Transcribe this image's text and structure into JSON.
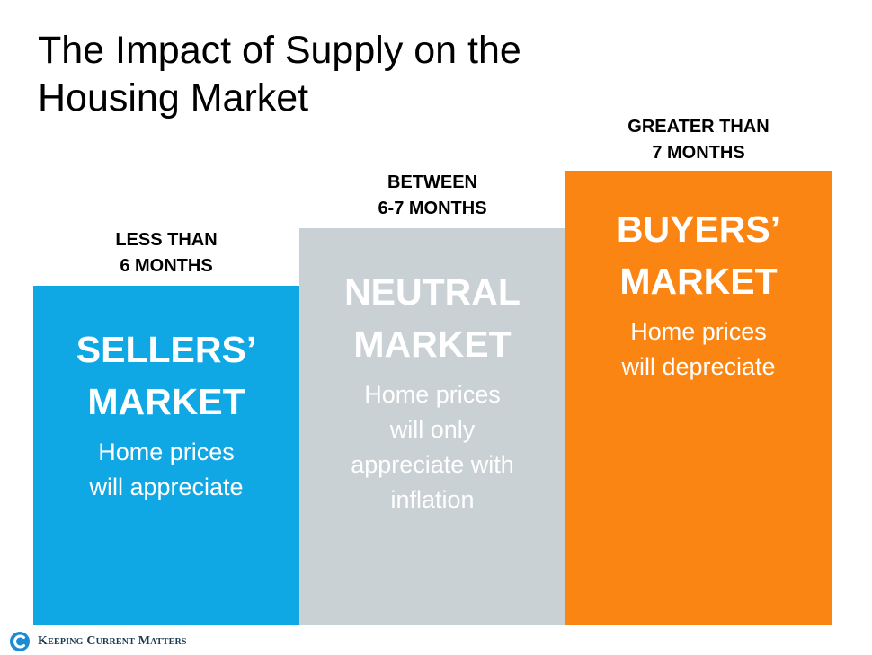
{
  "title": {
    "line1": "The Impact of Supply on the",
    "line2": "Housing Market"
  },
  "markets": [
    {
      "range_line1": "LESS THAN",
      "range_line2": "6 MONTHS",
      "name_line1": "SELLERS’",
      "name_line2": "MARKET",
      "desc_line1": "Home prices",
      "desc_line2": "will appreciate",
      "color": "#10a8e4"
    },
    {
      "range_line1": "BETWEEN",
      "range_line2": "6-7 MONTHS",
      "name_line1": "NEUTRAL",
      "name_line2": "MARKET",
      "desc_line1": "Home prices",
      "desc_line2": "will only",
      "desc_line3": "appreciate with",
      "desc_line4": "inflation",
      "color": "#c9d1d4"
    },
    {
      "range_line1": "GREATER THAN",
      "range_line2": "7 MONTHS",
      "name_line1": "BUYERS’",
      "name_line2": "MARKET",
      "desc_line1": "Home prices",
      "desc_line2": "will depreciate",
      "color": "#fb8512"
    }
  ],
  "logo": {
    "text": "Keeping Current Matters",
    "icon": "kcm-logo-icon",
    "color": "#1a8bd4"
  }
}
